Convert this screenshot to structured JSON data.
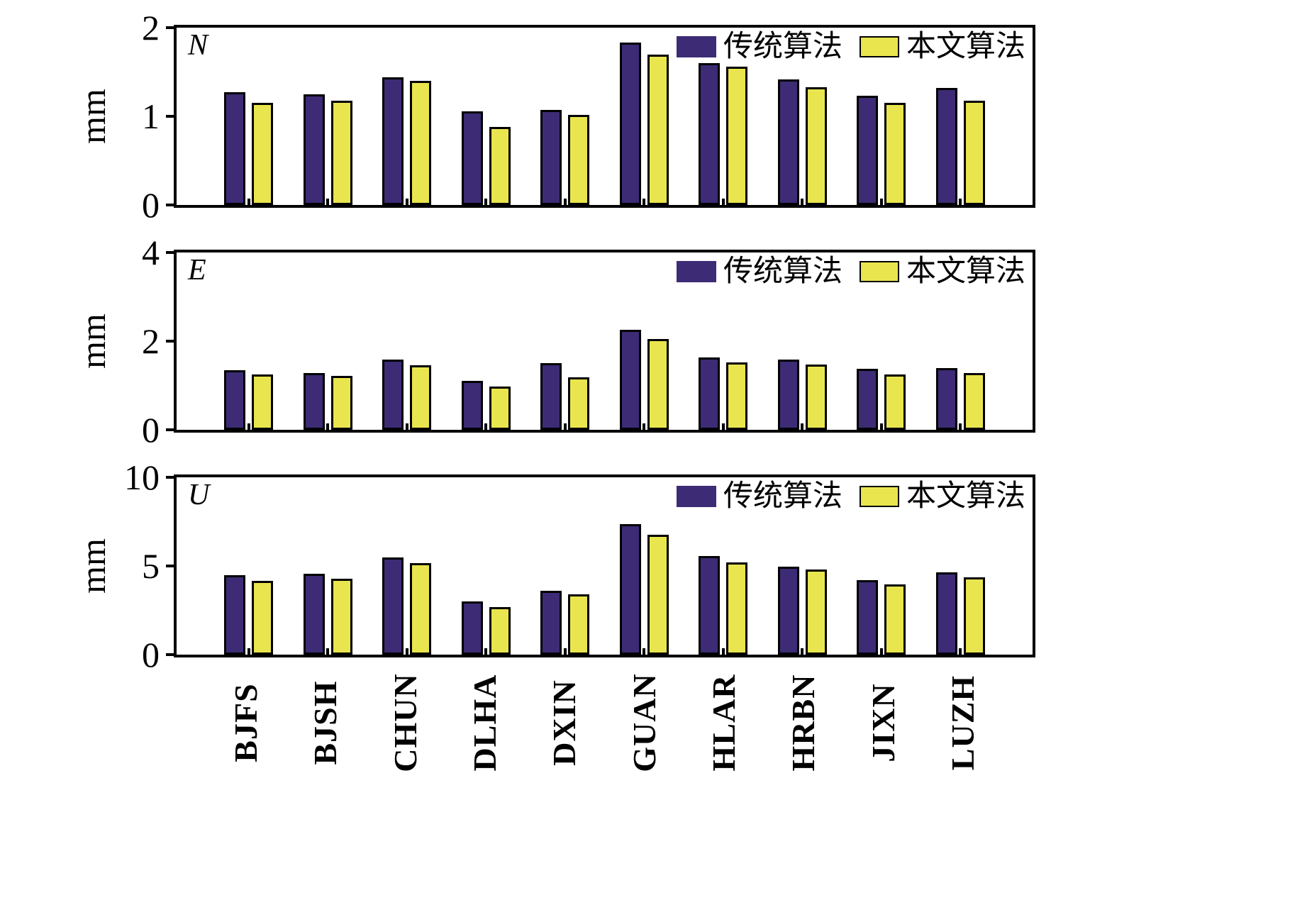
{
  "legend": {
    "series1": "传统算法",
    "series2": "本文算法"
  },
  "colors": {
    "series1": "#3d2b75",
    "series2": "#e9e54e"
  },
  "chart_data": [
    {
      "type": "bar",
      "panel": "N",
      "ylabel": "mm",
      "ylim": [
        0,
        2
      ],
      "yticks": [
        0,
        1,
        2
      ],
      "grid": false,
      "legend_position": "top-right",
      "categories": [
        "BJFS",
        "BJSH",
        "CHUN",
        "DLHA",
        "DXIN",
        "GUAN",
        "HLAR",
        "HRBN",
        "JIXN",
        "LUZH"
      ],
      "series": [
        {
          "name": "传统算法",
          "values": [
            1.27,
            1.25,
            1.44,
            1.06,
            1.07,
            1.83,
            1.6,
            1.42,
            1.23,
            1.32
          ]
        },
        {
          "name": "本文算法",
          "values": [
            1.15,
            1.18,
            1.4,
            0.88,
            1.02,
            1.7,
            1.56,
            1.33,
            1.15,
            1.18
          ]
        }
      ]
    },
    {
      "type": "bar",
      "panel": "E",
      "ylabel": "mm",
      "ylim": [
        0,
        4
      ],
      "yticks": [
        0,
        2,
        4
      ],
      "grid": false,
      "legend_position": "top-right",
      "categories": [
        "BJFS",
        "BJSH",
        "CHUN",
        "DLHA",
        "DXIN",
        "GUAN",
        "HLAR",
        "HRBN",
        "JIXN",
        "LUZH"
      ],
      "series": [
        {
          "name": "传统算法",
          "values": [
            1.35,
            1.28,
            1.58,
            1.1,
            1.5,
            2.25,
            1.63,
            1.58,
            1.38,
            1.4
          ]
        },
        {
          "name": "本文算法",
          "values": [
            1.25,
            1.21,
            1.45,
            0.97,
            1.18,
            2.05,
            1.52,
            1.47,
            1.25,
            1.28
          ]
        }
      ]
    },
    {
      "type": "bar",
      "panel": "U",
      "ylabel": "mm",
      "ylim": [
        0,
        10
      ],
      "yticks": [
        0,
        5,
        10
      ],
      "grid": false,
      "legend_position": "top-right",
      "categories": [
        "BJFS",
        "BJSH",
        "CHUN",
        "DLHA",
        "DXIN",
        "GUAN",
        "HLAR",
        "HRBN",
        "JIXN",
        "LUZH"
      ],
      "series": [
        {
          "name": "传统算法",
          "values": [
            4.5,
            4.55,
            5.5,
            3.0,
            3.6,
            7.35,
            5.55,
            4.95,
            4.2,
            4.65
          ]
        },
        {
          "name": "本文算法",
          "values": [
            4.15,
            4.3,
            5.15,
            2.7,
            3.4,
            6.75,
            5.2,
            4.8,
            3.95,
            4.35
          ]
        }
      ]
    }
  ]
}
